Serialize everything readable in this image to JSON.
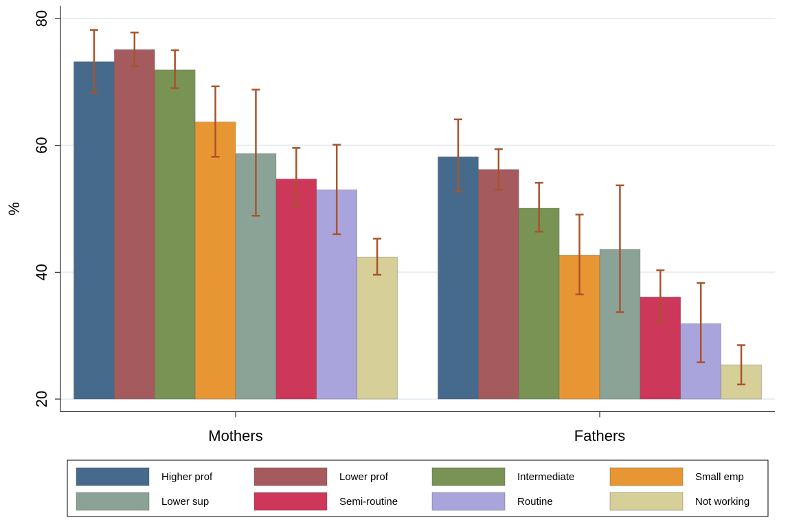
{
  "chart_data": {
    "type": "bar",
    "y_label": "%",
    "categories": [
      "Mothers",
      "Fathers"
    ],
    "ylim": [
      18,
      82
    ],
    "yticks": [
      20,
      40,
      60,
      80
    ],
    "grid": true,
    "error_color": "#a9532b",
    "legend_position": "bottom",
    "series": [
      {
        "name": "Higher prof",
        "color": "#466a8c",
        "values": [
          73.2,
          58.2
        ],
        "low": [
          68.3,
          52.7
        ],
        "high": [
          78.2,
          64.1
        ]
      },
      {
        "name": "Lower prof",
        "color": "#a55b5d",
        "values": [
          75.1,
          56.2
        ],
        "low": [
          72.5,
          53.0
        ],
        "high": [
          77.8,
          59.4
        ]
      },
      {
        "name": "Intermediate",
        "color": "#789353",
        "values": [
          71.9,
          50.1
        ],
        "low": [
          69.0,
          46.4
        ],
        "high": [
          75.0,
          54.1
        ]
      },
      {
        "name": "Small emp",
        "color": "#e89633",
        "values": [
          63.7,
          42.7
        ],
        "low": [
          58.2,
          36.5
        ],
        "high": [
          69.3,
          49.1
        ]
      },
      {
        "name": "Lower sup",
        "color": "#8aa396",
        "values": [
          58.7,
          43.6
        ],
        "low": [
          48.9,
          33.7
        ],
        "high": [
          68.8,
          53.7
        ]
      },
      {
        "name": "Semi-routine",
        "color": "#cd375a",
        "values": [
          54.7,
          36.1
        ],
        "low": [
          50.2,
          32.2
        ],
        "high": [
          59.6,
          40.3
        ]
      },
      {
        "name": "Routine",
        "color": "#a9a4dc",
        "values": [
          53.0,
          31.9
        ],
        "low": [
          46.0,
          25.8
        ],
        "high": [
          60.1,
          38.3
        ]
      },
      {
        "name": "Not working",
        "color": "#d6cf98",
        "values": [
          42.4,
          25.4
        ],
        "low": [
          39.6,
          22.3
        ],
        "high": [
          45.3,
          28.5
        ]
      }
    ]
  }
}
